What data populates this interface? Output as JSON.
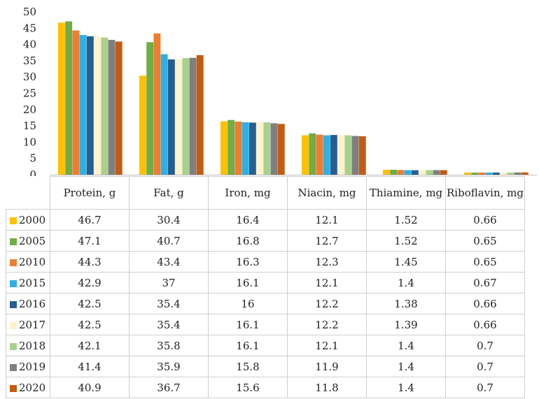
{
  "chart_data": {
    "type": "bar",
    "categories": [
      "Protein, g",
      "Fat, g",
      "Iron, mg",
      "Niacin, mg",
      "Thiamine, mg",
      "Riboflavin, mg"
    ],
    "series": [
      {
        "name": "2000",
        "color": "#FFC000",
        "values": [
          46.7,
          30.4,
          16.4,
          12.1,
          1.52,
          0.66
        ]
      },
      {
        "name": "2005",
        "color": "#70AD47",
        "values": [
          47.1,
          40.7,
          16.8,
          12.7,
          1.52,
          0.65
        ]
      },
      {
        "name": "2010",
        "color": "#ED7D31",
        "values": [
          44.3,
          43.4,
          16.3,
          12.3,
          1.45,
          0.65
        ]
      },
      {
        "name": "2015",
        "color": "#2EB0E4",
        "values": [
          42.9,
          37,
          16.1,
          12.1,
          1.4,
          0.67
        ]
      },
      {
        "name": "2016",
        "color": "#255E91",
        "values": [
          42.5,
          35.4,
          16,
          12.2,
          1.38,
          0.66
        ]
      },
      {
        "name": "2017",
        "color": "#FFF2CC",
        "values": [
          42.5,
          35.4,
          16.1,
          12.2,
          1.39,
          0.66
        ]
      },
      {
        "name": "2018",
        "color": "#A9D18E",
        "values": [
          42.1,
          35.8,
          16.1,
          12.1,
          1.4,
          0.7
        ]
      },
      {
        "name": "2019",
        "color": "#7F7F7F",
        "values": [
          41.4,
          35.9,
          15.8,
          11.9,
          1.4,
          0.7
        ]
      },
      {
        "name": "2020",
        "color": "#C55A11",
        "values": [
          40.9,
          36.7,
          15.6,
          11.8,
          1.4,
          0.7
        ]
      }
    ],
    "ylim": [
      0,
      50
    ],
    "yticks": [
      0,
      5,
      10,
      15,
      20,
      25,
      30,
      35,
      40,
      45,
      50
    ],
    "grid": false,
    "legend": "data-table-left",
    "data_table": true
  }
}
